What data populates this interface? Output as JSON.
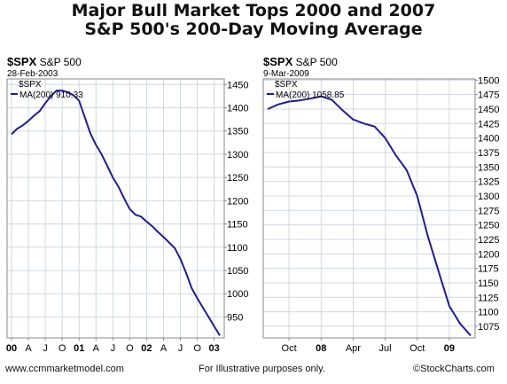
{
  "title": "Major Bull Market Tops 2000 and 2007",
  "subtitle": "S&P 500's 200-Day Moving Average",
  "footer": {
    "left": "www.ccmmarketmodel.com",
    "center": "For Illustrative purposes only.",
    "right": "©StockCharts.com"
  },
  "colors": {
    "line": "#1f1f8c",
    "grid": "#cfd8df",
    "frame": "#8a8a8a"
  },
  "chart_data": [
    {
      "type": "line",
      "symbol": "$SPX",
      "name": "S&P 500",
      "date": "28-Feb-2003",
      "legend_symbol": "$SPX",
      "legend_ma": "MA(200) 910.33",
      "series": [
        {
          "name": "MA(200)",
          "x": [
            "2000-01",
            "2000-02",
            "2000-03",
            "2000-04",
            "2000-05",
            "2000-06",
            "2000-07",
            "2000-08",
            "2000-09",
            "2000-10",
            "2000-11",
            "2000-12",
            "2001-01",
            "2001-02",
            "2001-03",
            "2001-04",
            "2001-05",
            "2001-06",
            "2001-07",
            "2001-08",
            "2001-09",
            "2001-10",
            "2001-11",
            "2001-12",
            "2002-01",
            "2002-02",
            "2002-03",
            "2002-04",
            "2002-05",
            "2002-06",
            "2002-07",
            "2002-08",
            "2002-09",
            "2002-10",
            "2002-11",
            "2002-12",
            "2003-01",
            "2003-02"
          ],
          "values": [
            1343,
            1355,
            1362,
            1372,
            1383,
            1393,
            1410,
            1425,
            1437,
            1437,
            1433,
            1427,
            1415,
            1380,
            1345,
            1320,
            1300,
            1275,
            1250,
            1230,
            1205,
            1182,
            1170,
            1166,
            1155,
            1145,
            1133,
            1122,
            1110,
            1098,
            1075,
            1045,
            1012,
            990,
            970,
            950,
            930,
            910
          ]
        }
      ],
      "x_ticks": [
        {
          "label": "00",
          "x": "2000-01",
          "bold": true
        },
        {
          "label": "A",
          "x": "2000-04"
        },
        {
          "label": "J",
          "x": "2000-07"
        },
        {
          "label": "O",
          "x": "2000-10"
        },
        {
          "label": "01",
          "x": "2001-01",
          "bold": true
        },
        {
          "label": "A",
          "x": "2001-04"
        },
        {
          "label": "J",
          "x": "2001-07"
        },
        {
          "label": "O",
          "x": "2001-10"
        },
        {
          "label": "02",
          "x": "2002-01",
          "bold": true
        },
        {
          "label": "A",
          "x": "2002-04"
        },
        {
          "label": "J",
          "x": "2002-07"
        },
        {
          "label": "O",
          "x": "2002-10"
        },
        {
          "label": "03",
          "x": "2003-01",
          "bold": true
        }
      ],
      "y_ticks": [
        950,
        1000,
        1050,
        1100,
        1150,
        1200,
        1250,
        1300,
        1350,
        1400,
        1450
      ],
      "ylim": [
        905,
        1462
      ],
      "grid": true
    },
    {
      "type": "line",
      "symbol": "$SPX",
      "name": "S&P 500",
      "date": "9-Mar-2009",
      "legend_symbol": "$SPX",
      "legend_ma": "MA(200) 1058.85",
      "series": [
        {
          "name": "MA(200)",
          "x": [
            "2007-08",
            "2007-09",
            "2007-10",
            "2007-11",
            "2007-12",
            "2008-01",
            "2008-02",
            "2008-03",
            "2008-04",
            "2008-05",
            "2008-06",
            "2008-07",
            "2008-08",
            "2008-09",
            "2008-10",
            "2008-11",
            "2008-12",
            "2009-01",
            "2009-02",
            "2009-03"
          ],
          "values": [
            1450,
            1458,
            1463,
            1465,
            1468,
            1472,
            1466,
            1448,
            1432,
            1425,
            1420,
            1400,
            1370,
            1345,
            1300,
            1230,
            1170,
            1110,
            1080,
            1059
          ]
        }
      ],
      "x_ticks": [
        {
          "label": "Oct",
          "x": "2007-10"
        },
        {
          "label": "08",
          "x": "2008-01",
          "bold": true
        },
        {
          "label": "Apr",
          "x": "2008-04"
        },
        {
          "label": "Jul",
          "x": "2008-07"
        },
        {
          "label": "Oct",
          "x": "2008-10"
        },
        {
          "label": "09",
          "x": "2009-01",
          "bold": true
        }
      ],
      "y_ticks": [
        1075,
        1100,
        1125,
        1150,
        1175,
        1200,
        1225,
        1250,
        1275,
        1300,
        1325,
        1350,
        1375,
        1400,
        1425,
        1450,
        1475,
        1500
      ],
      "ylim": [
        1055,
        1502
      ],
      "grid": true
    }
  ]
}
